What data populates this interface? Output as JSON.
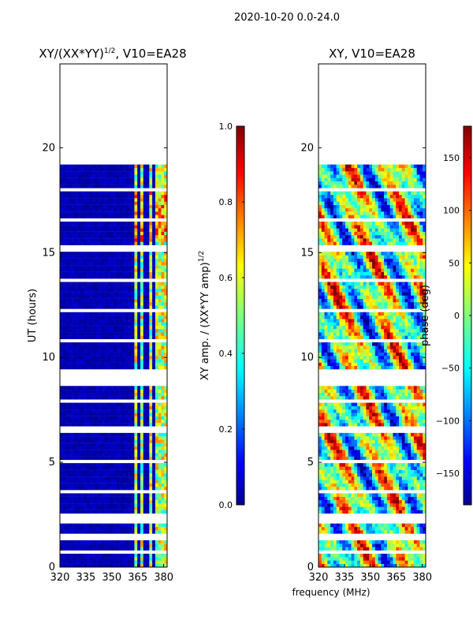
{
  "figure_title": "2020-10-20 0.0-24.0",
  "shared_xlabel": "frequency (MHz)",
  "chart_data": [
    {
      "type": "heatmap",
      "title": "XY/(XX*YY)",
      "title_superscript": "1/2",
      "title_suffix": ", V10=EA28",
      "xlabel": "",
      "ylabel": "UT (hours)",
      "xlim": [
        320,
        382
      ],
      "ylim": [
        0,
        24
      ],
      "xticks": [
        "320",
        "335",
        "350",
        "365",
        "380"
      ],
      "xtick_values": [
        320,
        335,
        350,
        365,
        380
      ],
      "yticks": [
        "0",
        "5",
        "10",
        "15",
        "20"
      ],
      "ytick_values": [
        0,
        5,
        10,
        15,
        20
      ],
      "data_ut_range": [
        0,
        19.2
      ],
      "colorbar": {
        "label": "XY amp. / (XX*YY amp)",
        "label_superscript": "1/2",
        "range": [
          0,
          1
        ],
        "ticks": [
          "0.0",
          "0.2",
          "0.4",
          "0.6",
          "0.8",
          "1.0"
        ],
        "tick_values": [
          0,
          0.2,
          0.4,
          0.6,
          0.8,
          1.0
        ]
      }
    },
    {
      "type": "heatmap",
      "title": "XY, V10=EA28",
      "xlabel": "frequency (MHz)",
      "ylabel": "",
      "xlim": [
        320,
        382
      ],
      "ylim": [
        0,
        24
      ],
      "xticks": [
        "320",
        "335",
        "350",
        "365",
        "380"
      ],
      "xtick_values": [
        320,
        335,
        350,
        365,
        380
      ],
      "yticks": [
        "0",
        "5",
        "10",
        "15",
        "20"
      ],
      "ytick_values": [
        0,
        5,
        10,
        15,
        20
      ],
      "data_ut_range": [
        0,
        19.2
      ],
      "colorbar": {
        "label": "phase (deg)",
        "range": [
          -180,
          180
        ],
        "ticks": [
          "−150",
          "−100",
          "−50",
          "0",
          "50",
          "100",
          "150"
        ],
        "tick_values": [
          -150,
          -100,
          -50,
          0,
          50,
          100,
          150
        ]
      }
    }
  ],
  "colors": {
    "jet_dark_blue": "#00008f",
    "jet_blue": "#0000ff",
    "jet_cyan": "#00ffff",
    "jet_yellow": "#ffff00",
    "jet_red": "#ff0000",
    "jet_dark_red": "#800000"
  }
}
